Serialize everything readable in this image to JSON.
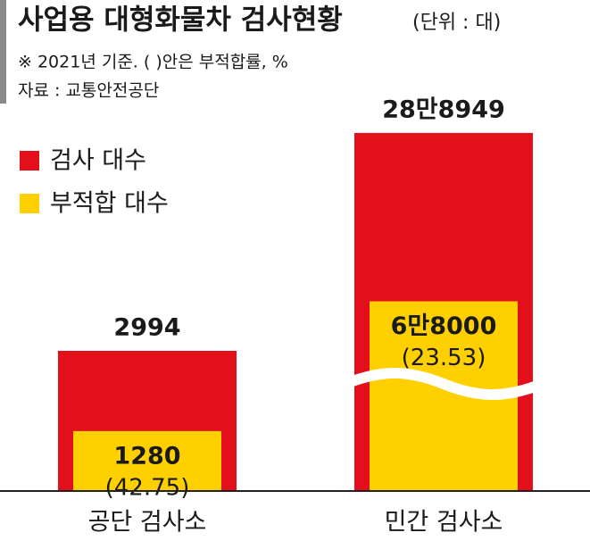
{
  "chart_data": {
    "type": "bar",
    "title": "사업용 대형화물차 검사현황",
    "unit": "(단위 : 대)",
    "subtitle": "※ 2021년 기준. (  )안은 부적합률, %",
    "source": "자료 : 교통안전공단",
    "categories": [
      "공단 검사소",
      "민간 검사소"
    ],
    "series": [
      {
        "name": "검사 대수",
        "color": "#e3101b",
        "values": [
          2994,
          288949
        ],
        "value_labels": [
          "2994",
          "28만8949"
        ]
      },
      {
        "name": "부적합 대수",
        "color": "#ffd000",
        "values": [
          1280,
          68000
        ],
        "value_labels": [
          "1280",
          "6만8000"
        ]
      }
    ],
    "rates": {
      "values": [
        42.75,
        23.53
      ],
      "value_labels": [
        "(42.75)",
        "(23.53)"
      ]
    },
    "ylim": [
      0,
      290000
    ],
    "axis_break": true
  }
}
